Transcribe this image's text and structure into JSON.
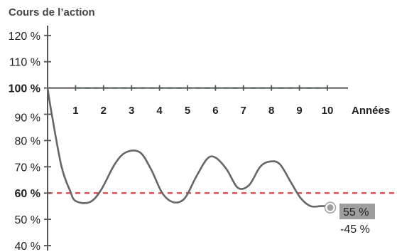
{
  "chart_data": {
    "type": "line",
    "title": "",
    "ylabel": "Cours de l’action",
    "xlabel": "Années",
    "xlim": [
      0,
      10
    ],
    "ylim": [
      40,
      120
    ],
    "y_ticks": [
      {
        "value": 120,
        "label": "120 %"
      },
      {
        "value": 110,
        "label": "110 %"
      },
      {
        "value": 100,
        "label": "100 %"
      },
      {
        "value": 90,
        "label": "90 %"
      },
      {
        "value": 80,
        "label": "80 %"
      },
      {
        "value": 70,
        "label": "70 %"
      },
      {
        "value": 60,
        "label": "60 %"
      },
      {
        "value": 50,
        "label": "50 %"
      },
      {
        "value": 40,
        "label": "40 %"
      }
    ],
    "x_ticks": [
      {
        "value": 1,
        "label": "1"
      },
      {
        "value": 2,
        "label": "2"
      },
      {
        "value": 3,
        "label": "3"
      },
      {
        "value": 4,
        "label": "4"
      },
      {
        "value": 5,
        "label": "5"
      },
      {
        "value": 6,
        "label": "6"
      },
      {
        "value": 7,
        "label": "7"
      },
      {
        "value": 8,
        "label": "8"
      },
      {
        "value": 9,
        "label": "9"
      },
      {
        "value": 10,
        "label": "10"
      }
    ],
    "reference_lines": [
      {
        "value": 100,
        "label": "100 %",
        "color": "#1aa89a",
        "x_range": [
          1,
          10
        ]
      },
      {
        "value": 60,
        "label": "60 %",
        "color": "#e03c3c",
        "x_range": [
          0,
          12.5
        ]
      }
    ],
    "series": [
      {
        "color": "#666666",
        "x": [
          0,
          0.15,
          0.5,
          0.8,
          1.0,
          1.5,
          1.9,
          2.4,
          2.8,
          3.3,
          3.7,
          4.1,
          4.5,
          4.9,
          5.3,
          5.7,
          6.0,
          6.4,
          6.8,
          7.2,
          7.6,
          7.95,
          8.3,
          8.7,
          9.05,
          9.4,
          9.75,
          10.0
        ],
        "y": [
          100,
          90,
          70,
          61,
          57,
          56.5,
          61,
          71,
          75.5,
          75.5,
          69,
          60,
          56.5,
          58,
          66,
          73,
          73.5,
          69,
          62,
          63,
          70,
          72,
          71,
          64,
          58,
          55,
          55,
          55
        ]
      }
    ],
    "end_marker": {
      "x": 10,
      "y": 55
    },
    "annotations": [
      "55 %",
      "-45 %"
    ],
    "colors": {
      "line": "#666666",
      "axis": "#555555",
      "teal": "#1aa89a",
      "red": "#e03c3c",
      "label_box": "#9e9e9e"
    }
  }
}
